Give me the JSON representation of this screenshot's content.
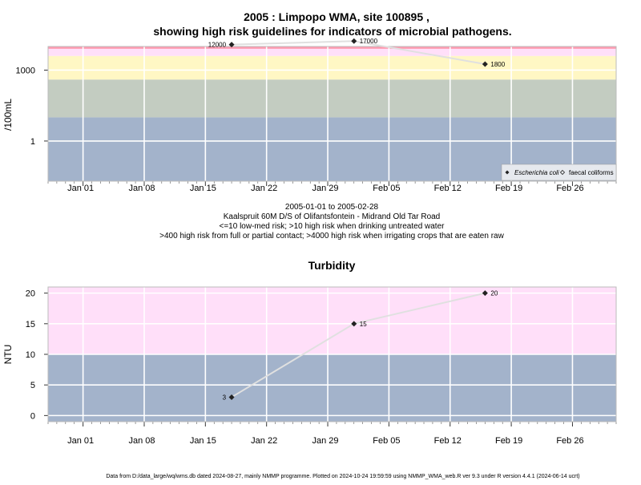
{
  "title_line1": "2005 : Limpopo WMA, site 100895 ,",
  "title_line2": "showing high risk guidelines for indicators of microbial pathogens.",
  "x_tick_labels": [
    "Jan 01",
    "Jan 08",
    "Jan 15",
    "Jan 22",
    "Jan 29",
    "Feb 05",
    "Feb 12",
    "Feb 19",
    "Feb 26"
  ],
  "caption_lines": [
    "2005-01-01 to 2005-02-28",
    "Kaalspruit 60M D/S of Olifantsfontein - Midrand Old Tar Road",
    "<=10 low-med risk; >10 high risk when drinking untreated water",
    ">400 high risk from full or partial contact; >4000 high risk when irrigating crops that are eaten raw"
  ],
  "footer": "Data from D:/data_large/wq/wms.db dated 2024-08-27, mainly NMMP programme. Plotted on 2024-10-24 19:59:59 using NMMP_WMA_web.R ver 9.3 under R version 4.4.1 (2024-06-14 ucrt)",
  "colors": {
    "low_band": "#a3b3cb",
    "mid_band": "#c3ccc1",
    "yellow_band": "#fff7c4",
    "pink_band": "#ffdff9",
    "red_band": "#ff9ab0",
    "line": "#e0e0e0",
    "point": "#222222",
    "grid": "#ffffff"
  },
  "chart_data": [
    {
      "type": "line",
      "ylabel": "/100mL",
      "y_scale": "log",
      "ylim": [
        0.02,
        10000
      ],
      "y_ticks": [
        1,
        1000
      ],
      "y_tick_labels": [
        "1",
        "1000"
      ],
      "xlim": [
        "2004-12-28",
        "2005-03-03"
      ],
      "bands": [
        {
          "from": 0.02,
          "to": 10
        },
        {
          "from": 10,
          "to": 400
        },
        {
          "from": 400,
          "to": 4000
        },
        {
          "from": 4000,
          "to": 8000
        },
        {
          "from": 8000,
          "to": 10000
        }
      ],
      "legend": {
        "position": "bottom-right",
        "entries": [
          "Escherichia coli",
          "faecal coliforms"
        ]
      },
      "series": [
        {
          "name": "Escherichia coli",
          "marker": "filled-diamond",
          "points": [
            {
              "x": "2005-01-18",
              "y": 12000,
              "label": "12000"
            },
            {
              "x": "2005-02-01",
              "y": 17000,
              "label": "17000"
            },
            {
              "x": "2005-02-16",
              "y": 1800,
              "label": "1800"
            }
          ]
        }
      ]
    },
    {
      "type": "line",
      "title": "Turbidity",
      "ylabel": "NTU",
      "y_scale": "linear",
      "ylim": [
        -1,
        21
      ],
      "y_ticks": [
        0,
        5,
        10,
        15,
        20
      ],
      "y_tick_labels": [
        "0",
        "5",
        "10",
        "15",
        "20"
      ],
      "xlim": [
        "2004-12-28",
        "2005-03-03"
      ],
      "bands": [
        {
          "from": -1,
          "to": 10
        },
        {
          "from": 10,
          "to": 21
        }
      ],
      "series": [
        {
          "marker": "filled-diamond",
          "points": [
            {
              "x": "2005-01-18",
              "y": 3,
              "label": "3"
            },
            {
              "x": "2005-02-01",
              "y": 15,
              "label": "15"
            },
            {
              "x": "2005-02-16",
              "y": 20,
              "label": "20"
            }
          ]
        }
      ]
    }
  ]
}
